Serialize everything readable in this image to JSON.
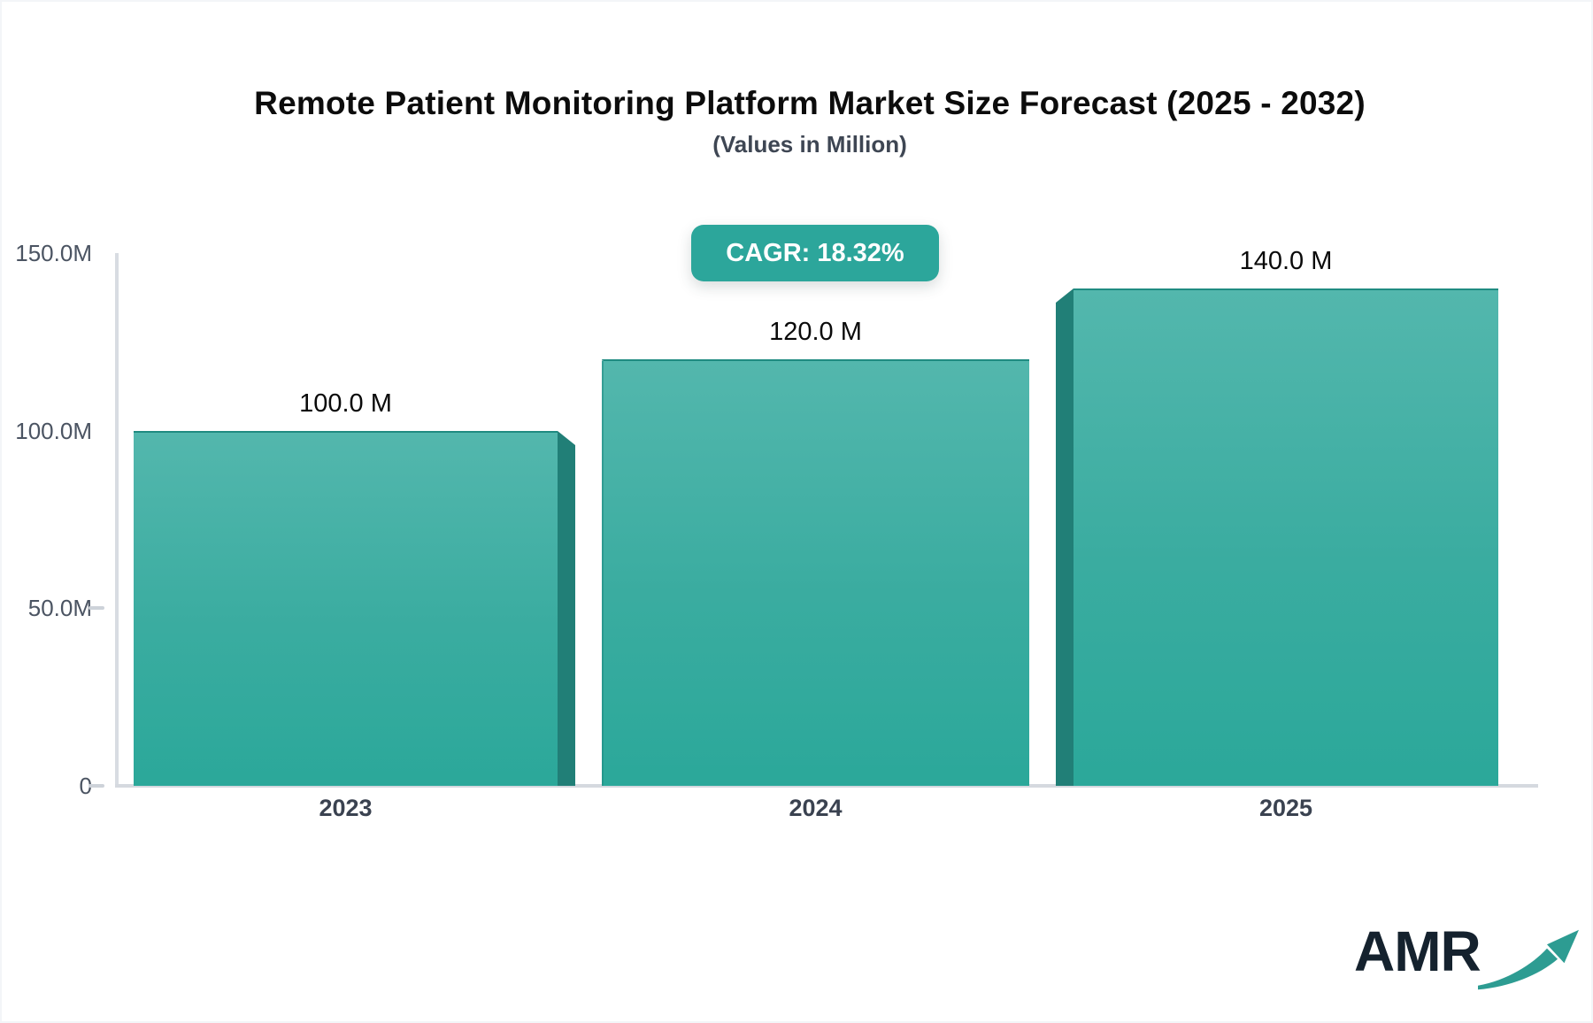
{
  "header": {
    "title": "Remote Patient Monitoring Platform Market Size Forecast (2025 - 2032)",
    "subtitle": "(Values in Million)"
  },
  "cagr_badge": {
    "label": "CAGR: 18.32%",
    "color": "#2ca69b",
    "text_color": "#ffffff"
  },
  "chart_data": {
    "type": "bar",
    "title": "Remote Patient Monitoring Platform Market Size Forecast (2025 - 2032)",
    "subtitle": "(Values in Million)",
    "categories": [
      "2023",
      "2024",
      "2025"
    ],
    "values": [
      100,
      120,
      140
    ],
    "value_labels": [
      "100.0 M",
      "120.0 M",
      "140.0 M"
    ],
    "yticks": [
      {
        "label": "150.0M",
        "value": 150
      },
      {
        "label": "100.0M",
        "value": 100
      },
      {
        "label": "50.0M",
        "value": 50
      },
      {
        "label": "0",
        "value": 0
      }
    ],
    "ylim": [
      0,
      150
    ],
    "grid": "off",
    "legend": "none",
    "annotation": "CAGR: 18.32%",
    "bar_color_top": "#53b7ad",
    "bar_color_bottom": "#2ba89a",
    "bar_side_color": "#217f77"
  },
  "logo": {
    "text": "AMR",
    "text_color": "#15222e",
    "arrow_color": "#2d9c92"
  }
}
